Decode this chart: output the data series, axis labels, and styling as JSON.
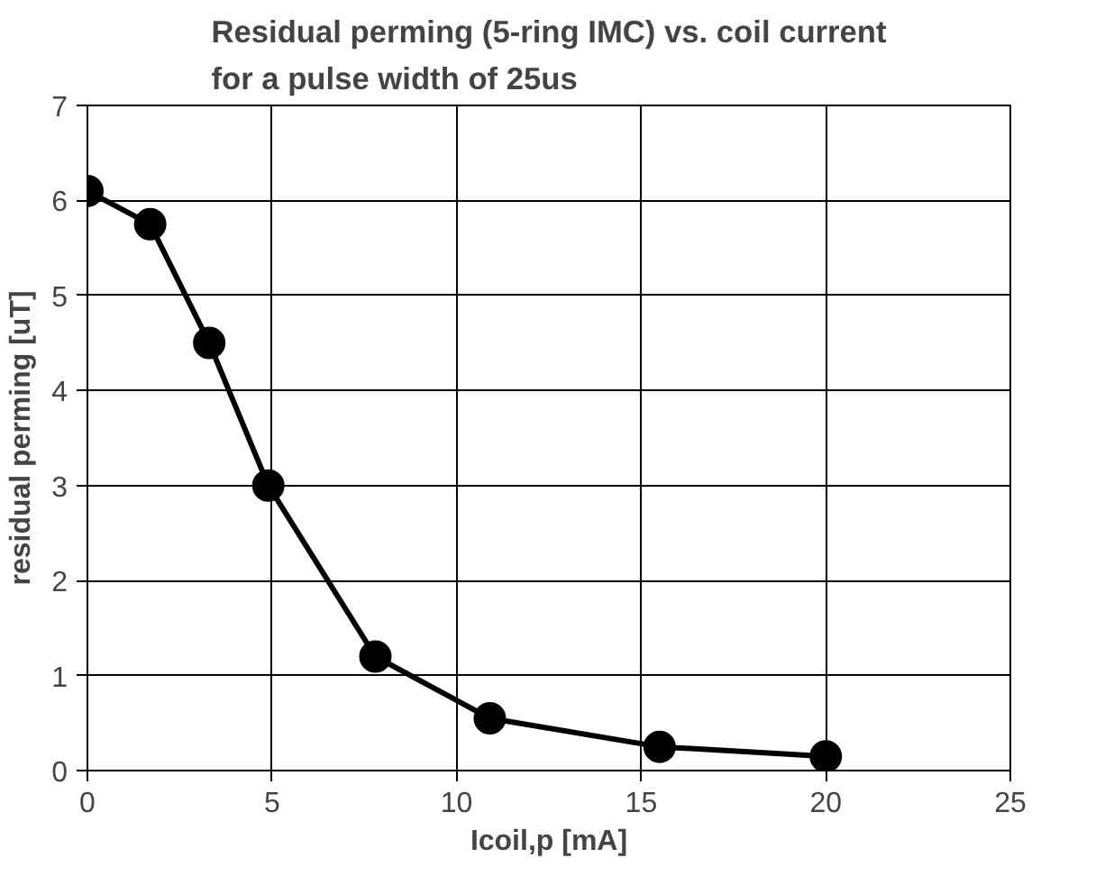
{
  "chart_data": {
    "type": "line",
    "title": "Residual perming (5-ring IMC) vs. coil current for a pulse width of 25us",
    "xlabel": "Icoil,p [mA]",
    "ylabel": "residual perming [uT]",
    "x": [
      0,
      1.7,
      3.3,
      4.9,
      7.8,
      10.9,
      15.5,
      20
    ],
    "series": [
      {
        "color": "#000000",
        "values": [
          6.1,
          5.75,
          4.5,
          3.0,
          1.2,
          0.55,
          0.25,
          0.15
        ]
      }
    ],
    "xlim": [
      0,
      25
    ],
    "xticks": [
      0,
      5,
      10,
      15,
      20,
      25
    ],
    "ylim": [
      0,
      7
    ],
    "yticks": [
      0,
      1,
      2,
      3,
      4,
      5,
      6,
      7
    ],
    "grid": true,
    "marker": "circle",
    "line_style": "solid"
  }
}
